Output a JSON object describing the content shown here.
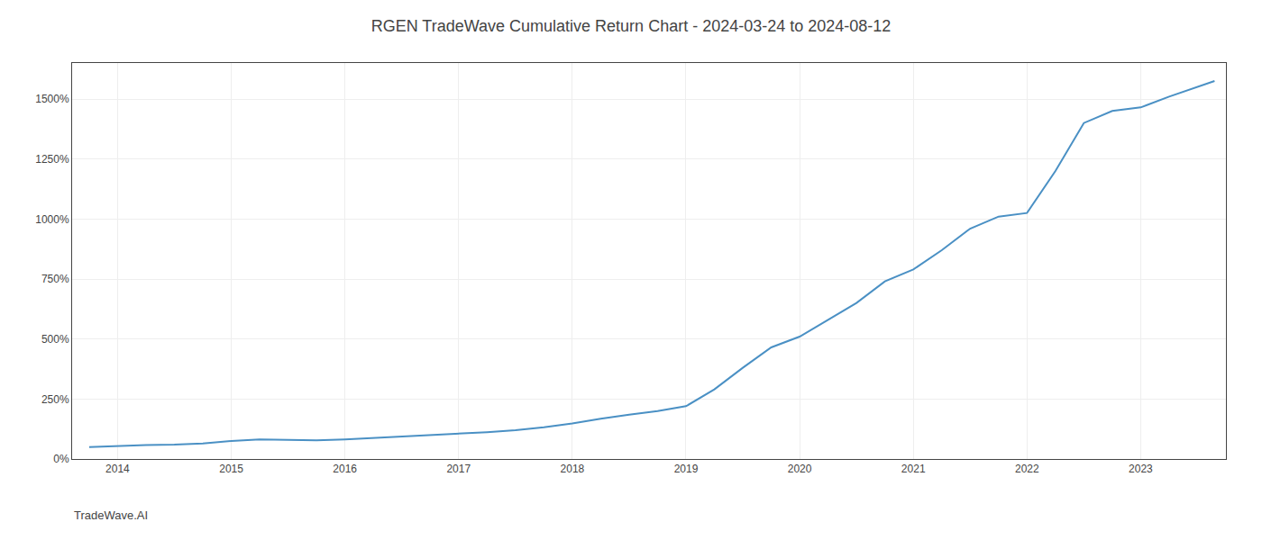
{
  "chart_data": {
    "type": "line",
    "title": "RGEN TradeWave Cumulative Return Chart - 2024-03-24 to 2024-08-12",
    "annotations": [
      "TradeWave.AI"
    ],
    "x": [
      2013.75,
      2014.0,
      2014.25,
      2014.5,
      2014.75,
      2015.0,
      2015.25,
      2015.5,
      2015.75,
      2016.0,
      2016.25,
      2016.5,
      2016.75,
      2017.0,
      2017.25,
      2017.5,
      2017.75,
      2018.0,
      2018.25,
      2018.5,
      2018.75,
      2019.0,
      2019.25,
      2019.5,
      2019.75,
      2020.0,
      2020.25,
      2020.5,
      2020.75,
      2021.0,
      2021.25,
      2021.5,
      2021.75,
      2022.0,
      2022.25,
      2022.5,
      2022.75,
      2023.0,
      2023.25,
      2023.5,
      2023.65
    ],
    "values": [
      50,
      55,
      58,
      60,
      65,
      75,
      82,
      80,
      78,
      82,
      88,
      92,
      98,
      105,
      112,
      120,
      132,
      148,
      168,
      185,
      200,
      220,
      290,
      380,
      465,
      510,
      580,
      650,
      740,
      790,
      870,
      960,
      1010,
      1025,
      1200,
      1400,
      1450,
      1465,
      1510,
      1550,
      1575
    ],
    "color": "#4a90c4",
    "xlim": [
      2013.6,
      2023.75
    ],
    "xticks": [
      2014,
      2015,
      2016,
      2017,
      2018,
      2019,
      2020,
      2021,
      2022,
      2023
    ],
    "ylim": [
      0,
      1650
    ],
    "yticks": [
      {
        "value": 0,
        "label": "0%"
      },
      {
        "value": 250,
        "label": "250%"
      },
      {
        "value": 500,
        "label": "500%"
      },
      {
        "value": 750,
        "label": "750%"
      },
      {
        "value": 1000,
        "label": "1000%"
      },
      {
        "value": 1250,
        "label": "1250%"
      },
      {
        "value": 1500,
        "label": "1500%"
      }
    ],
    "grid": true
  }
}
